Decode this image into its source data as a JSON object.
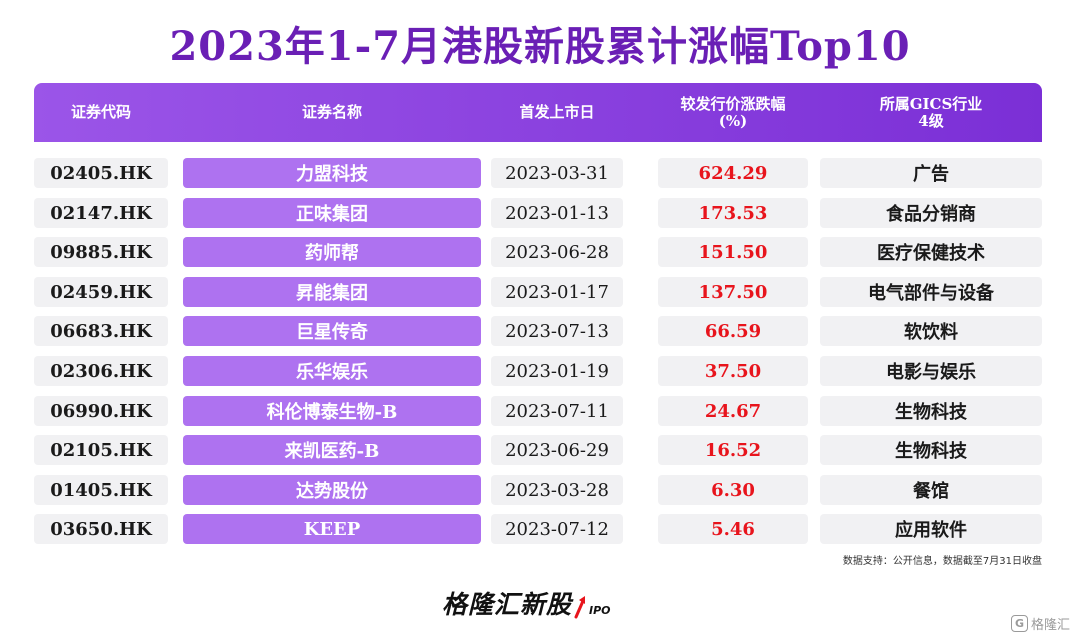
{
  "title": "2023年1-7月港股新股累计涨幅Top10",
  "chart_data": {
    "type": "table",
    "title": "2023年1-7月港股新股累计涨幅Top10",
    "columns": [
      "证券代码",
      "证券名称",
      "首发上市日",
      "较发行价涨跌幅(%)",
      "所属GICS行业4级"
    ],
    "header": {
      "code": "证券代码",
      "name": "证券名称",
      "date": "首发上市日",
      "gain_line1": "较发行价涨跌幅",
      "gain_line2": "(%)",
      "industry_line1": "所属GICS行业",
      "industry_line2": "4级"
    },
    "rows": [
      {
        "code": "02405.HK",
        "name": "力盟科技",
        "date": "2023-03-31",
        "gain": "624.29",
        "industry": "广告"
      },
      {
        "code": "02147.HK",
        "name": "正味集团",
        "date": "2023-01-13",
        "gain": "173.53",
        "industry": "食品分销商"
      },
      {
        "code": "09885.HK",
        "name": "药师帮",
        "date": "2023-06-28",
        "gain": "151.50",
        "industry": "医疗保健技术"
      },
      {
        "code": "02459.HK",
        "name": "昇能集团",
        "date": "2023-01-17",
        "gain": "137.50",
        "industry": "电气部件与设备"
      },
      {
        "code": "06683.HK",
        "name": "巨星传奇",
        "date": "2023-07-13",
        "gain": "66.59",
        "industry": "软饮料"
      },
      {
        "code": "02306.HK",
        "name": "乐华娱乐",
        "date": "2023-01-19",
        "gain": "37.50",
        "industry": "电影与娱乐"
      },
      {
        "code": "06990.HK",
        "name": "科伦博泰生物-B",
        "date": "2023-07-11",
        "gain": "24.67",
        "industry": "生物科技"
      },
      {
        "code": "02105.HK",
        "name": "来凯医药-B",
        "date": "2023-06-29",
        "gain": "16.52",
        "industry": "生物科技"
      },
      {
        "code": "01405.HK",
        "name": "达势股份",
        "date": "2023-03-28",
        "gain": "6.30",
        "industry": "餐馆"
      },
      {
        "code": "03650.HK",
        "name": "KEEP",
        "date": "2023-07-12",
        "gain": "5.46",
        "industry": "应用软件"
      }
    ],
    "colors": {
      "title": "#6a1fb5",
      "header_bg": "#8a3fe0",
      "name_bg": "#ae72f0",
      "gain_text": "#e8141c",
      "cell_bg": "#f1f1f3"
    }
  },
  "source_note": "数据支持：公开信息，数据截至7月31日收盘",
  "brand": {
    "name": "格隆汇新股",
    "suffix": "IPO",
    "icon": "rising-arrow-icon"
  },
  "watermark": {
    "logo": "G",
    "text": "格隆汇",
    "icon": "gelonghui-logo-icon"
  }
}
